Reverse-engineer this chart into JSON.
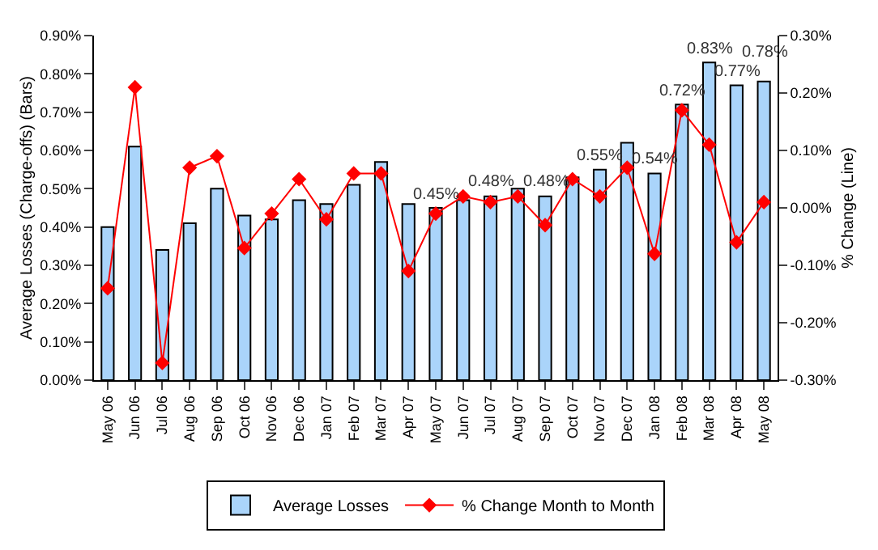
{
  "chart_data": {
    "type": "bar",
    "ylabel": "Average Losses (Charge-offs) (Bars)",
    "y2label": "% Change (Line)",
    "categories": [
      "May 06",
      "Jun 06",
      "Jul 06",
      "Aug 06",
      "Sep 06",
      "Oct 06",
      "Nov 06",
      "Dec 06",
      "Jan 07",
      "Feb 07",
      "Mar 07",
      "Apr 07",
      "May 07",
      "Jun 07",
      "Jul 07",
      "Aug 07",
      "Sep 07",
      "Oct 07",
      "Nov 07",
      "Dec 07",
      "Jan 08",
      "Feb 08",
      "Mar 08",
      "Apr 08",
      "May 08"
    ],
    "series": [
      {
        "name": "Average Losses",
        "color": "#aad4fa",
        "values": [
          0.4,
          0.61,
          0.34,
          0.41,
          0.5,
          0.43,
          0.42,
          0.47,
          0.46,
          0.51,
          0.57,
          0.46,
          0.45,
          0.47,
          0.48,
          0.5,
          0.48,
          0.53,
          0.55,
          0.62,
          0.54,
          0.72,
          0.83,
          0.77,
          0.78
        ],
        "value_labels": [
          null,
          null,
          null,
          null,
          null,
          null,
          null,
          null,
          null,
          null,
          null,
          null,
          "0.45%",
          null,
          "0.48%",
          null,
          "0.48%",
          null,
          "0.55%",
          null,
          "0.54%",
          "0.72%",
          "0.83%",
          "0.77%",
          "0.78%"
        ]
      },
      {
        "name": "% Change Month to Month",
        "type": "line",
        "axis": "y2",
        "color": "#ff0000",
        "marker": "diamond",
        "values": [
          -0.14,
          0.21,
          -0.27,
          0.07,
          0.09,
          -0.07,
          -0.01,
          0.05,
          -0.02,
          0.06,
          0.06,
          -0.11,
          -0.01,
          0.02,
          0.01,
          0.02,
          -0.03,
          0.05,
          0.02,
          0.07,
          -0.08,
          0.17,
          0.11,
          -0.06,
          0.01
        ]
      }
    ],
    "ylim": [
      0,
      0.9
    ],
    "yticks": [
      {
        "value": 0,
        "label": "0.00%"
      },
      {
        "value": 0.1,
        "label": "0.10%"
      },
      {
        "value": 0.2,
        "label": "0.20%"
      },
      {
        "value": 0.3,
        "label": "0.30%"
      },
      {
        "value": 0.4,
        "label": "0.40%"
      },
      {
        "value": 0.5,
        "label": "0.50%"
      },
      {
        "value": 0.6,
        "label": "0.60%"
      },
      {
        "value": 0.7,
        "label": "0.70%"
      },
      {
        "value": 0.8,
        "label": "0.80%"
      },
      {
        "value": 0.9,
        "label": "0.90%"
      }
    ],
    "y2lim": [
      -0.3,
      0.3
    ],
    "y2ticks": [
      {
        "value": -0.3,
        "label": "-0.30%"
      },
      {
        "value": -0.2,
        "label": "-0.20%"
      },
      {
        "value": -0.1,
        "label": "-0.10%"
      },
      {
        "value": 0,
        "label": "0.00%"
      },
      {
        "value": 0.1,
        "label": "0.10%"
      },
      {
        "value": 0.2,
        "label": "0.20%"
      },
      {
        "value": 0.3,
        "label": "0.30%"
      }
    ],
    "legend": "bottom",
    "grid": false
  }
}
